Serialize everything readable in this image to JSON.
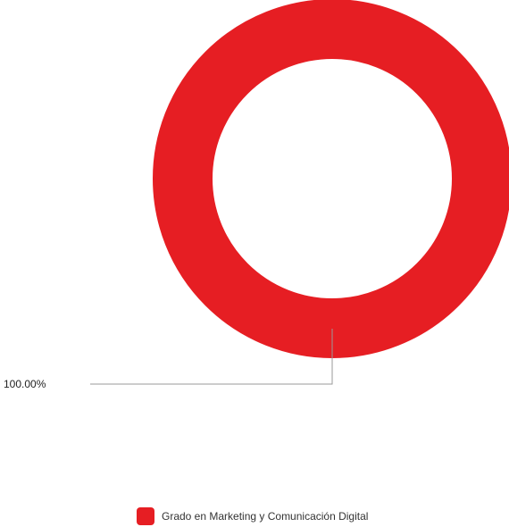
{
  "chart_data": {
    "type": "pie",
    "variant": "donut",
    "title": "",
    "slices": [
      {
        "label": "Grado en Marketing y Comunicación Digital",
        "value": 100.0,
        "value_label": "100.00%",
        "color": "#e61e23"
      }
    ],
    "legend": {
      "position": "bottom",
      "items": [
        "Grado en Marketing y Comunicación Digital"
      ]
    }
  }
}
